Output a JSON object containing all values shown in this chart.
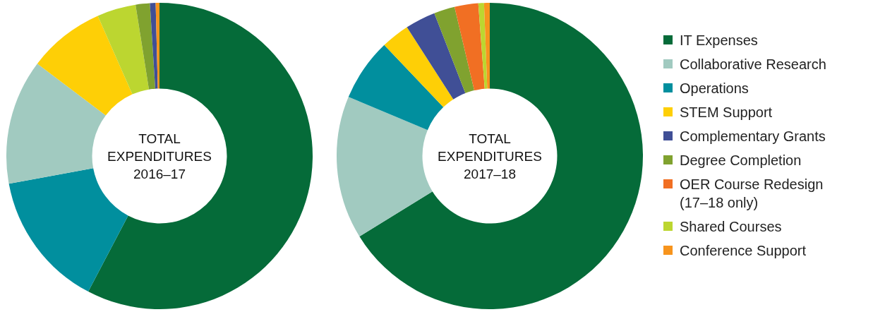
{
  "chart_data": [
    {
      "type": "donut",
      "title": "TOTAL EXPENDITURES 2016–17",
      "categories": [
        null,
        null,
        null,
        null,
        null,
        null,
        null,
        null
      ],
      "values": [
        57.7,
        14.4,
        13.2,
        8.1,
        4.1,
        1.5,
        0.6,
        0.4
      ],
      "colors": [
        "#056b39",
        "#018f9e",
        "#a1cac0",
        "#fecf06",
        "#bcd630",
        "#80a22f",
        "#404f96",
        "#f7941d"
      ],
      "legend": false
    },
    {
      "type": "donut",
      "title": "TOTAL EXPENDITURES 2017–18",
      "categories": [
        "IT Expenses",
        "Collaborative Research",
        "Operations",
        "STEM Support",
        "Complementary Grants",
        "Degree Completion",
        "OER Course Redesign (17–18 only)",
        "Shared Courses",
        "Conference Support"
      ],
      "values": [
        66.2,
        15.1,
        6.6,
        3.0,
        3.2,
        2.2,
        2.5,
        0.6,
        0.6
      ],
      "colors": [
        "#056b39",
        "#a1cac0",
        "#018f9e",
        "#fecf06",
        "#404f96",
        "#80a22f",
        "#f16f23",
        "#bcd630",
        "#f7941d"
      ],
      "legend": "right"
    }
  ]
}
